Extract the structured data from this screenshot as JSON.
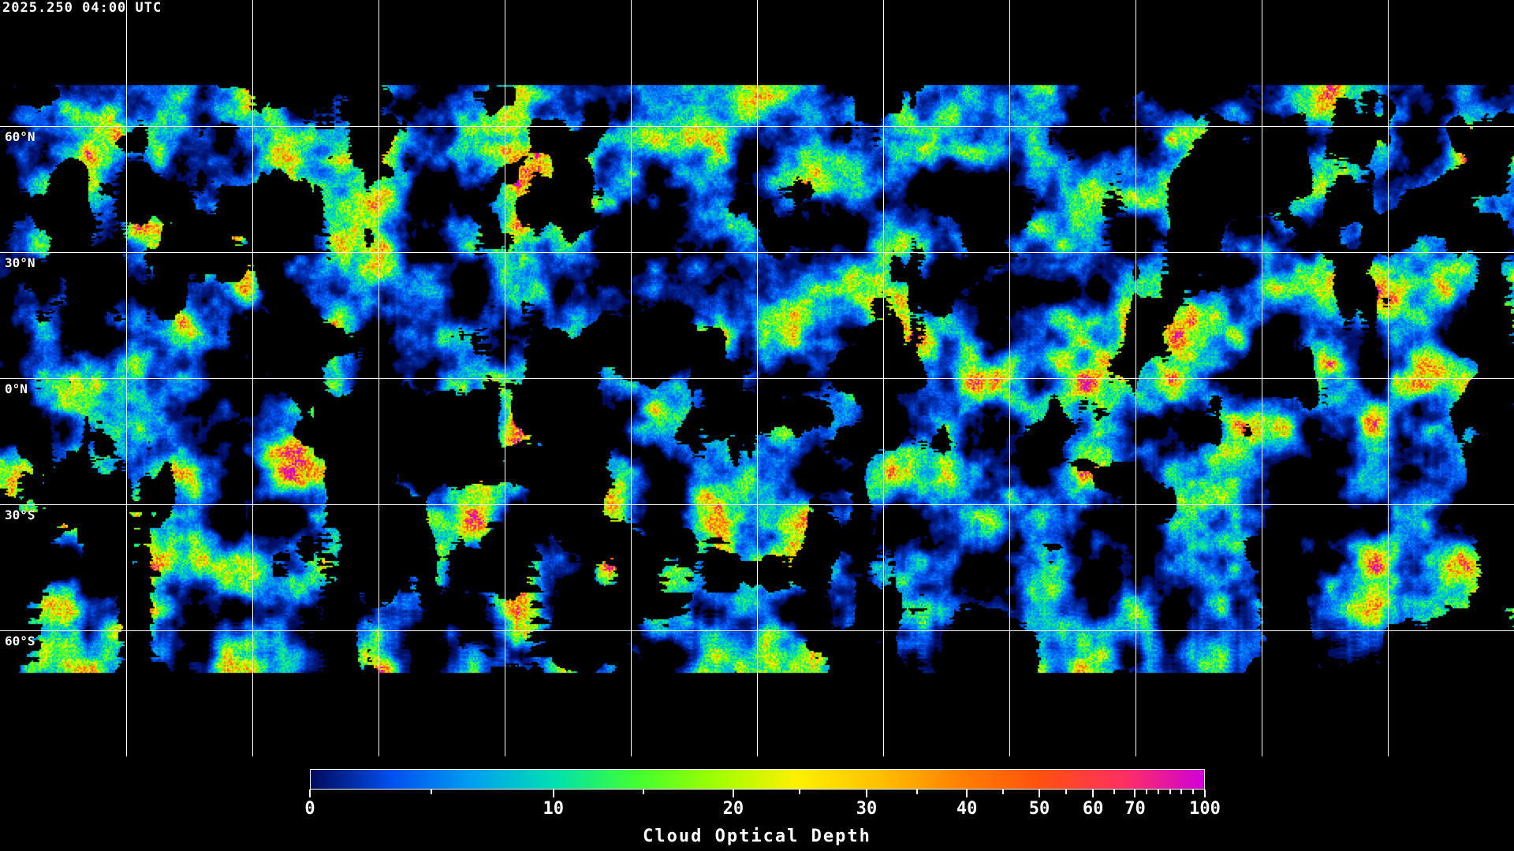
{
  "timestamp": "2025.250 04:00 UTC",
  "map": {
    "projection": "equirectangular",
    "latitude_labels": [
      "60°N",
      "30°N",
      "0°N",
      "30°S",
      "60°S"
    ],
    "gridline_color": "#ffffff",
    "coastline_color": "#ffffff",
    "background": "#000000"
  },
  "colorbar": {
    "title": "Cloud Optical Depth",
    "min": 0,
    "max": 100,
    "tick_labels": [
      "0",
      "10",
      "20",
      "30",
      "40",
      "50",
      "60",
      "70",
      "100"
    ],
    "colors": [
      "#000a5a",
      "#0050f0",
      "#00a0f0",
      "#00e0b0",
      "#40ff30",
      "#a0ff00",
      "#fff000",
      "#ffc000",
      "#ff8000",
      "#ff5010",
      "#ff3060",
      "#d000d8"
    ]
  }
}
